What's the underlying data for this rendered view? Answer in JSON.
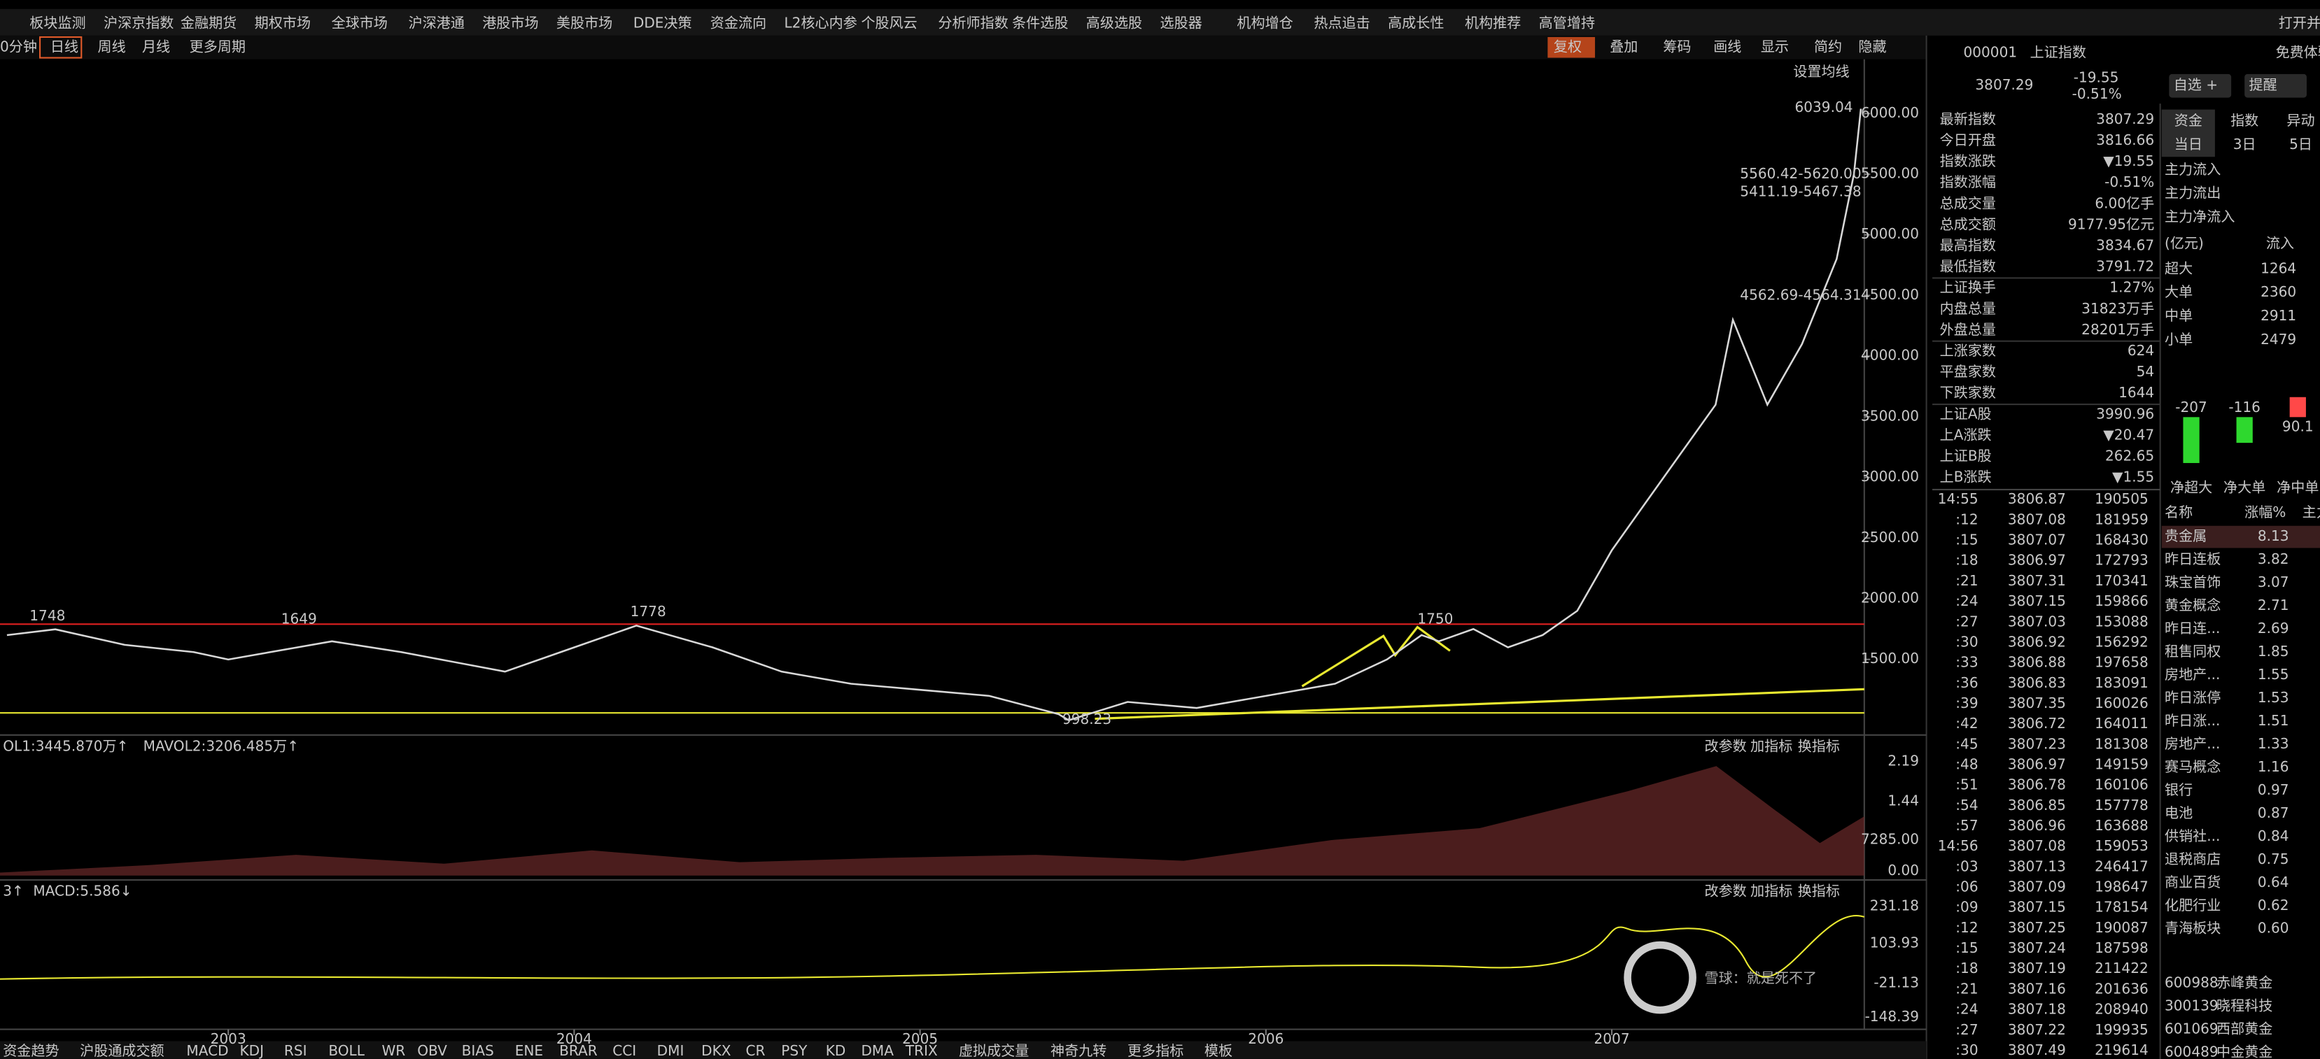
{
  "menu": [
    "板块监测",
    "沪深京指数",
    "金融期货",
    "期权市场",
    "全球市场",
    "沪深港通",
    "港股市场",
    "美股市场",
    "DDE决策",
    "资金流向",
    "L2核心内参",
    "个股风云",
    "分析师指数",
    "条件选股",
    "高级选股",
    "选股器",
    "机构增仓",
    "热点追击",
    "高成长性",
    "机构推荐",
    "高管增持",
    "打开并"
  ],
  "toolbar": {
    "left": [
      "0分钟",
      "日线",
      "周线",
      "月线",
      "更多周期"
    ],
    "right": [
      "复权",
      "叠加",
      "筹码",
      "画线",
      "显示",
      "简约",
      "隐藏"
    ],
    "settings": "设置均线"
  },
  "price_chart": {
    "type": "line",
    "color": "#d8d8d8",
    "x": [
      2002.36,
      2002.5,
      2002.7,
      2002.9,
      2003.0,
      2003.2,
      2003.3,
      2003.5,
      2003.8,
      2004.0,
      2004.18,
      2004.4,
      2004.6,
      2004.8,
      2005.0,
      2005.2,
      2005.4,
      2005.43,
      2005.6,
      2005.8,
      2006.0,
      2006.2,
      2006.35,
      2006.45,
      2006.5,
      2006.6,
      2006.7,
      2006.8,
      2006.9,
      2007.0,
      2007.1,
      2007.2,
      2007.3,
      2007.35,
      2007.45,
      2007.55,
      2007.65,
      2007.7,
      2007.72
    ],
    "values": [
      1700,
      1748,
      1620,
      1560,
      1500,
      1600,
      1649,
      1560,
      1400,
      1600,
      1778,
      1600,
      1400,
      1300,
      1250,
      1200,
      1050,
      998,
      1150,
      1100,
      1200,
      1300,
      1500,
      1700,
      1650,
      1750,
      1600,
      1700,
      1900,
      2400,
      2800,
      3200,
      3600,
      4300,
      3600,
      4100,
      4800,
      5500,
      6039
    ],
    "xlim": [
      2002.34,
      2007.73
    ],
    "ylim": [
      840,
      6240
    ],
    "xticks": [
      2003,
      2004,
      2005,
      2006,
      2007
    ],
    "yticks": [
      {
        "value": 6000,
        "label": "6000.00"
      },
      {
        "value": 5500,
        "label": "5500.00"
      },
      {
        "value": 5000,
        "label": "5000.00"
      },
      {
        "value": 4500,
        "label": "4500.00"
      },
      {
        "value": 4000,
        "label": "4000.00"
      },
      {
        "value": 3500,
        "label": "3500.00"
      },
      {
        "value": 3000,
        "label": "3000.00"
      },
      {
        "value": 2500,
        "label": "2500.00"
      },
      {
        "value": 2000,
        "label": "2000.00"
      },
      {
        "value": 1500,
        "label": "1500.00"
      }
    ],
    "annotations": [
      "1748",
      "1649",
      "1778",
      "1750",
      "998.23",
      "6039.04",
      "5560.42-5620.00",
      "5411.19-5467.38",
      "4562.69-4564.31"
    ]
  },
  "volume_panel": {
    "legend": [
      "OL1:3445.870万↑",
      "MAVOL2:3206.485万↑"
    ],
    "buttons": [
      "改参数",
      "加指标",
      "换指标"
    ],
    "axis": [
      "2.19",
      "1.44",
      "7285.00",
      "0.00"
    ]
  },
  "macd_panel": {
    "legend": [
      "3↑",
      "MACD:5.586↓"
    ],
    "buttons": [
      "改参数",
      "加指标",
      "换指标"
    ],
    "axis": [
      "231.18",
      "103.93",
      "-21.13",
      "-148.39"
    ]
  },
  "bottom_tabs": [
    "资金趋势",
    "沪股通成交额",
    "MACD",
    "KDJ",
    "RSI",
    "BOLL",
    "WR",
    "OBV",
    "BIAS",
    "ENE",
    "BRAR",
    "CCI",
    "DMI",
    "DKX",
    "CR",
    "PSY",
    "KD",
    "DMA",
    "TRIX",
    "虚拟成交量",
    "神奇九转",
    "更多指标",
    "模板"
  ],
  "quote": {
    "code": "000001",
    "name": "上证指数",
    "price": "3807.29",
    "change": "-19.55",
    "pct": "-0.51%",
    "buttons": [
      "自选 +",
      "提醒"
    ],
    "rows": [
      [
        "最新指数",
        "3807.29"
      ],
      [
        "今日开盘",
        "3816.66"
      ],
      [
        "指数涨跌",
        "▼19.55"
      ],
      [
        "指数涨幅",
        "-0.51%"
      ],
      [
        "总成交量",
        "6.00亿手"
      ],
      [
        "总成交额",
        "9177.95亿元"
      ],
      [
        "最高指数",
        "3834.67"
      ],
      [
        "最低指数",
        "3791.72"
      ],
      [
        "上证换手",
        "1.27%"
      ],
      [
        "内盘总量",
        "31823万手"
      ],
      [
        "外盘总量",
        "28201万手"
      ],
      [
        "上涨家数",
        "624"
      ],
      [
        "平盘家数",
        "54"
      ],
      [
        "下跌家数",
        "1644"
      ],
      [
        "上证A股",
        "3990.96"
      ],
      [
        "上A涨跌",
        "▼20.47"
      ],
      [
        "上证B股",
        "262.65"
      ],
      [
        "上B涨跌",
        "▼1.55"
      ]
    ]
  },
  "ticks": [
    [
      "14:55",
      "3806.87",
      "190505"
    ],
    [
      ":12",
      "3807.08",
      "181959"
    ],
    [
      ":15",
      "3807.07",
      "168430"
    ],
    [
      ":18",
      "3806.97",
      "172793"
    ],
    [
      ":21",
      "3807.31",
      "170341"
    ],
    [
      ":24",
      "3807.15",
      "159866"
    ],
    [
      ":27",
      "3807.03",
      "153088"
    ],
    [
      ":30",
      "3806.92",
      "156292"
    ],
    [
      ":33",
      "3806.88",
      "197658"
    ],
    [
      ":36",
      "3806.83",
      "183091"
    ],
    [
      ":39",
      "3807.35",
      "160026"
    ],
    [
      ":42",
      "3806.72",
      "164011"
    ],
    [
      ":45",
      "3807.23",
      "181308"
    ],
    [
      ":48",
      "3806.97",
      "149159"
    ],
    [
      ":51",
      "3806.78",
      "160106"
    ],
    [
      ":54",
      "3806.85",
      "157778"
    ],
    [
      ":57",
      "3806.96",
      "163688"
    ],
    [
      "14:56",
      "3807.08",
      "159053"
    ],
    [
      ":03",
      "3807.13",
      "246417"
    ],
    [
      ":06",
      "3807.09",
      "198647"
    ],
    [
      ":09",
      "3807.15",
      "178154"
    ],
    [
      ":12",
      "3807.25",
      "190087"
    ],
    [
      ":15",
      "3807.24",
      "187598"
    ],
    [
      ":18",
      "3807.19",
      "211422"
    ],
    [
      ":21",
      "3807.16",
      "201636"
    ],
    [
      ":24",
      "3807.18",
      "208940"
    ],
    [
      ":27",
      "3807.22",
      "199935"
    ],
    [
      ":30",
      "3807.49",
      "219614"
    ]
  ],
  "flow": {
    "free": "免费体验",
    "tabs": [
      "资金",
      "指数",
      "异动"
    ],
    "periods": [
      "当日",
      "3日",
      "5日"
    ],
    "main": [
      "主力流入",
      "主力流出",
      "主力净流入"
    ],
    "header": [
      "(亿元)",
      "流入"
    ],
    "rows": [
      [
        "超大",
        "1264"
      ],
      [
        "大单",
        "2360"
      ],
      [
        "中单",
        "2911"
      ],
      [
        "小单",
        "2479"
      ]
    ],
    "chart": {
      "type": "bar",
      "categories": [
        "净超大",
        "净大单",
        "净中单"
      ],
      "values": [
        -207,
        -116,
        90.1
      ]
    }
  },
  "sectors": {
    "header": [
      "名称",
      "涨幅%",
      "主力"
    ],
    "rows": [
      [
        "贵金属",
        "8.13"
      ],
      [
        "昨日连板",
        "3.82"
      ],
      [
        "珠宝首饰",
        "3.07"
      ],
      [
        "黄金概念",
        "2.71"
      ],
      [
        "昨日连...",
        "2.69"
      ],
      [
        "租售同权",
        "1.85"
      ],
      [
        "房地产...",
        "1.55"
      ],
      [
        "昨日涨停",
        "1.53"
      ],
      [
        "昨日涨...",
        "1.51"
      ],
      [
        "房地产...",
        "1.33"
      ],
      [
        "赛马概念",
        "1.16"
      ],
      [
        "银行",
        "0.97"
      ],
      [
        "电池",
        "0.87"
      ],
      [
        "供销社...",
        "0.84"
      ],
      [
        "退税商店",
        "0.75"
      ],
      [
        "商业百货",
        "0.64"
      ],
      [
        "化肥行业",
        "0.62"
      ],
      [
        "青海板块",
        "0.60"
      ]
    ]
  },
  "stocks": [
    [
      "600988",
      "赤峰黄金"
    ],
    [
      "300139",
      "晓程科技"
    ],
    [
      "601069",
      "西部黄金"
    ],
    [
      "600489",
      "中金黄金"
    ]
  ],
  "watermark": "雪球：就是死不了"
}
